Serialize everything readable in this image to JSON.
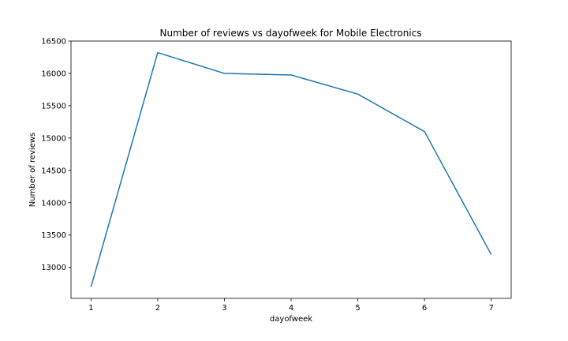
{
  "chart_data": {
    "type": "line",
    "title": "Number of reviews vs dayofweek for Mobile Electronics",
    "xlabel": "dayofweek",
    "ylabel": "Number of reviews",
    "x": [
      1,
      2,
      3,
      4,
      5,
      6,
      7
    ],
    "xticks": [
      "1",
      "2",
      "3",
      "4",
      "5",
      "6",
      "7"
    ],
    "yticks": [
      "13000",
      "13500",
      "14000",
      "14500",
      "15000",
      "15500",
      "16000",
      "16500"
    ],
    "series": [
      {
        "values": [
          12700,
          16320,
          16000,
          15975,
          15680,
          15100,
          13200
        ]
      }
    ],
    "xlim": [
      0.7,
      7.3
    ],
    "ylim": [
      12520,
      16500
    ],
    "grid": false,
    "line_color": "#1f77b4"
  }
}
